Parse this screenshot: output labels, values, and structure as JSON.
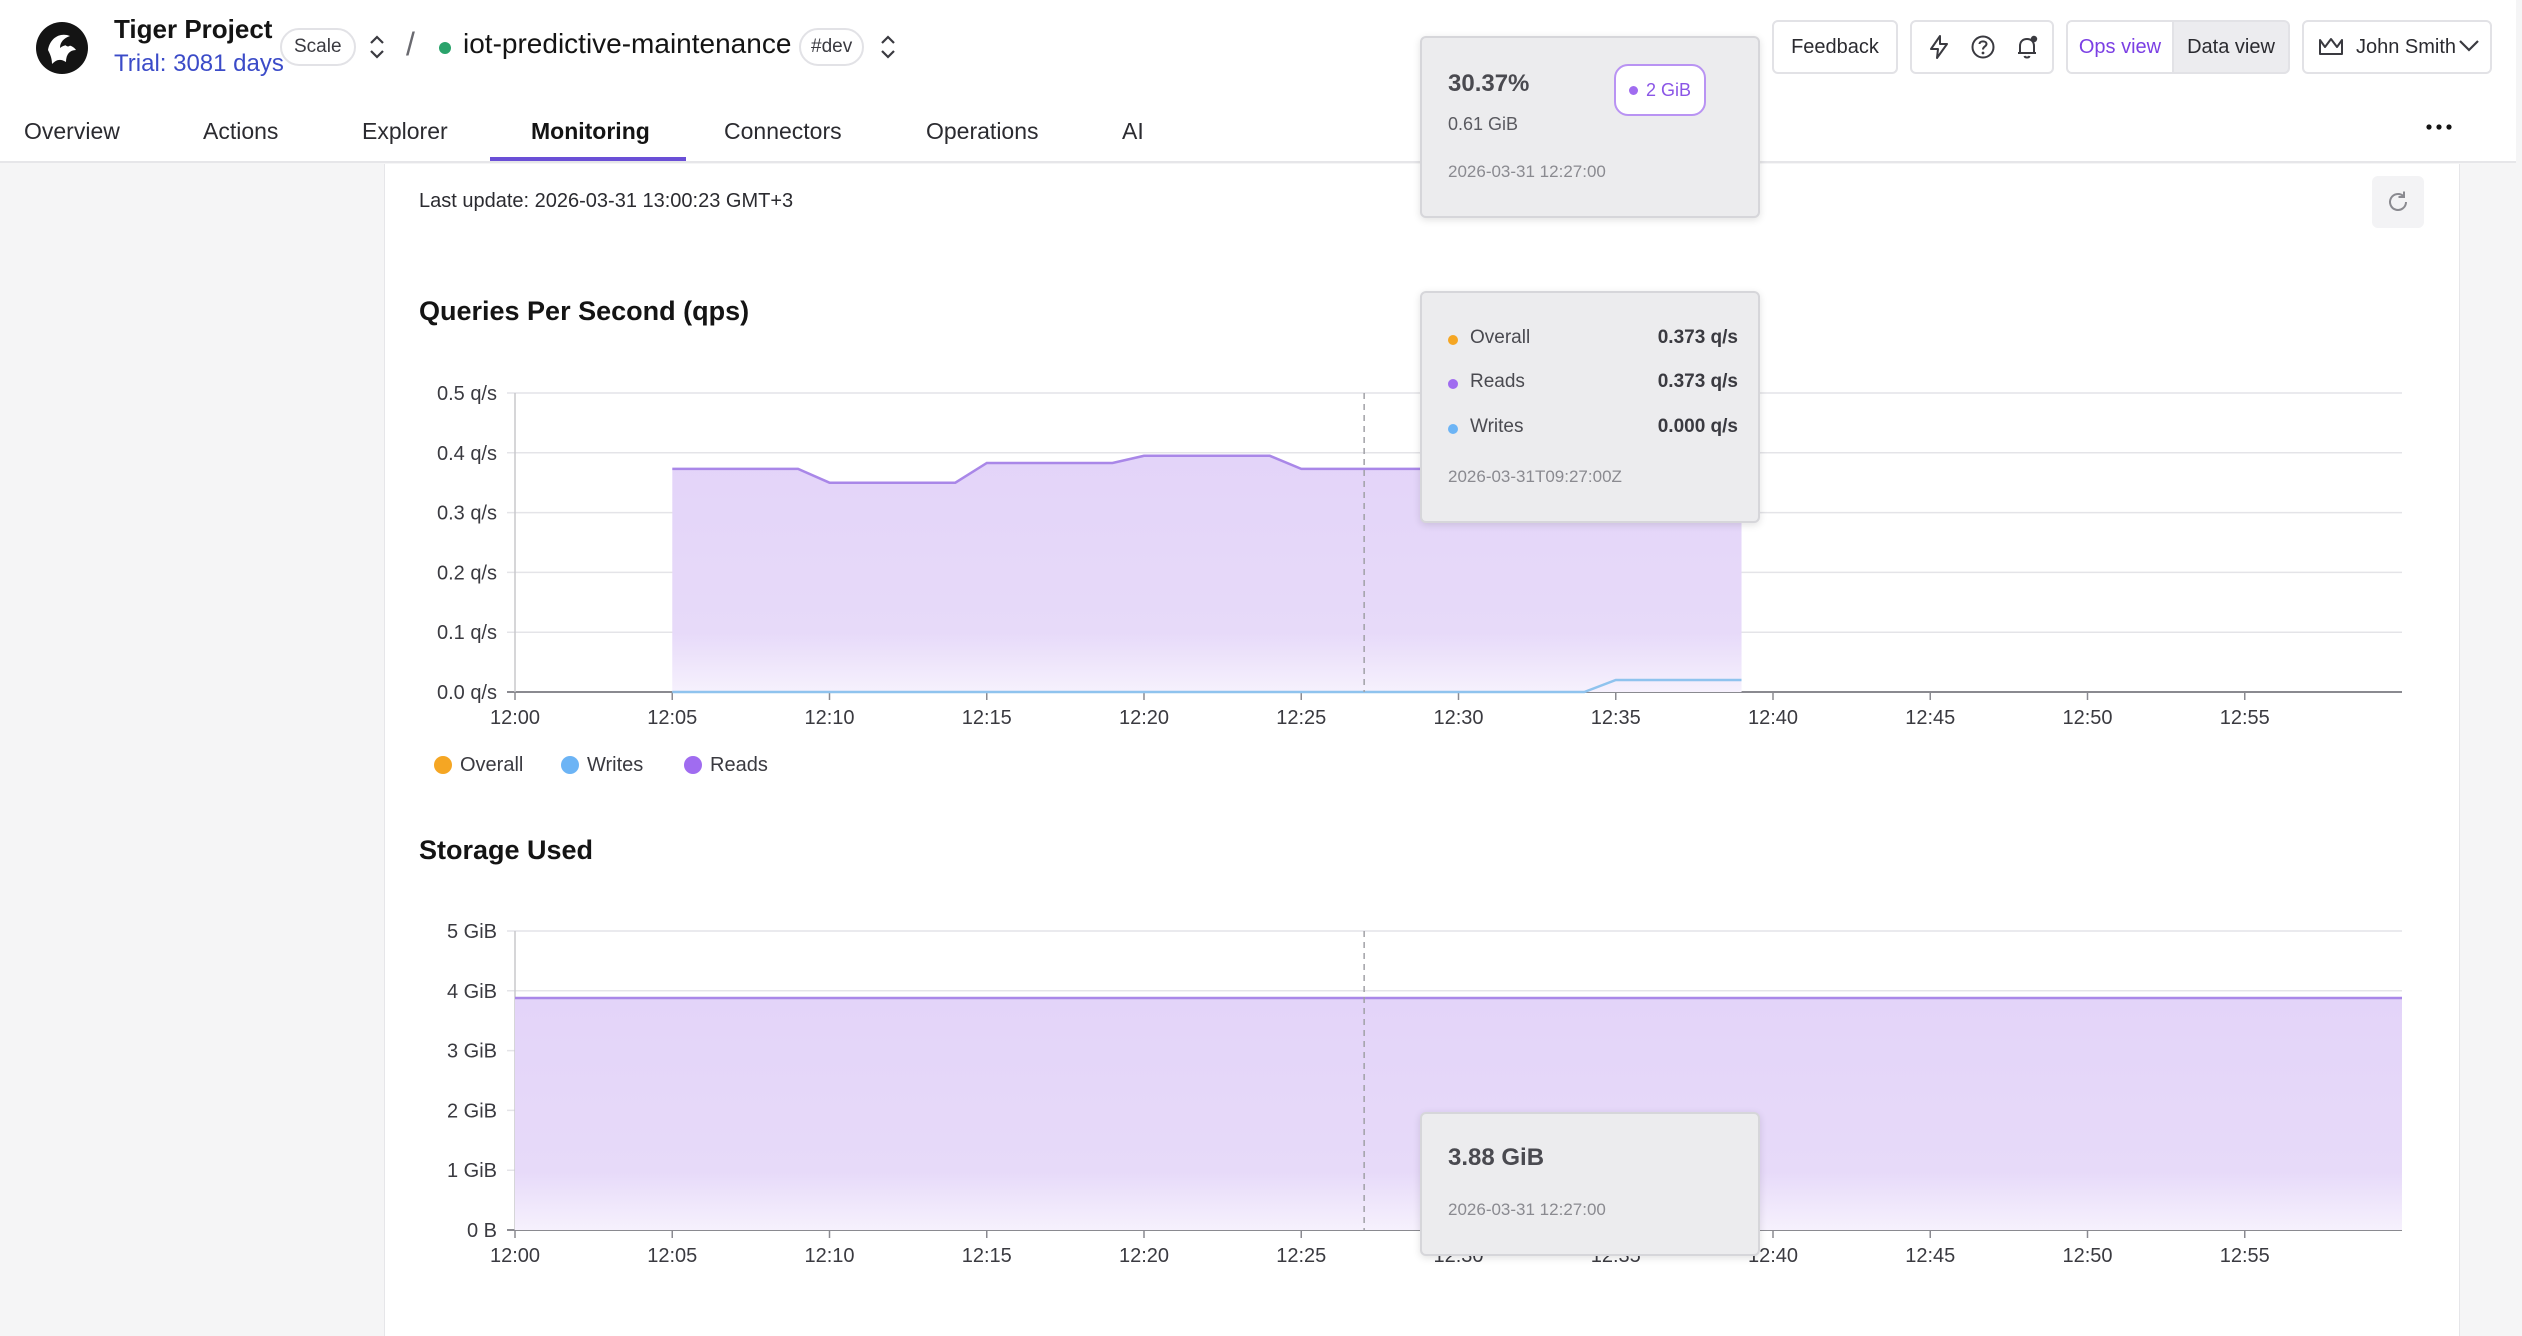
{
  "header": {
    "project_name": "Tiger Project",
    "trial": "Trial: 3081 days",
    "plan_chip": "Scale",
    "separator": "/",
    "service_name": "iot-predictive-maintenance",
    "env_chip": "#dev",
    "feedback_label": "Feedback",
    "ops_view_label": "Ops view",
    "data_view_label": "Data view",
    "user_name": "John Smith",
    "icons": [
      "logo-icon",
      "updown-icon",
      "lightning-icon",
      "help-icon",
      "bell-icon",
      "crown-icon",
      "chevron-down-icon",
      "more-icon",
      "refresh-icon"
    ]
  },
  "tabs": [
    "Overview",
    "Actions",
    "Explorer",
    "Monitoring",
    "Connectors",
    "Operations",
    "AI"
  ],
  "active_tab": "Monitoring",
  "last_update": "Last update: 2026-03-31 13:00:23 GMT+3",
  "qps_section": {
    "title": "Queries Per Second (qps)",
    "legend": [
      {
        "label": "Overall",
        "color": "#f5a623"
      },
      {
        "label": "Writes",
        "color": "#6cb4f5"
      },
      {
        "label": "Reads",
        "color": "#a06cf0"
      }
    ]
  },
  "storage_section": {
    "title": "Storage Used"
  },
  "tooltip_memory": {
    "percent": "30.37%",
    "amount": "0.61 GiB",
    "chip": "2 GiB",
    "time": "2026-03-31 12:27:00"
  },
  "tooltip_qps": {
    "rows": [
      {
        "label": "Overall",
        "value": "0.373 q/s",
        "color": "#f5a623"
      },
      {
        "label": "Reads",
        "value": "0.373 q/s",
        "color": "#a06cf0"
      },
      {
        "label": "Writes",
        "value": "0.000 q/s",
        "color": "#6cb4f5"
      }
    ],
    "time": "2026-03-31T09:27:00Z"
  },
  "tooltip_storage": {
    "value": "3.88 GiB",
    "time": "2026-03-31 12:27:00"
  },
  "colors": {
    "accent": "#7b3fe4",
    "reads_fill": "#e4d6fa",
    "reads_line": "#a987e8",
    "writes_line": "#8fc3ee",
    "trial_link": "#3b4bc8",
    "status_dot": "#2aa36b"
  },
  "chart_data": [
    {
      "type": "area",
      "title": "Queries Per Second (qps)",
      "x_ticks": [
        "12:00",
        "12:05",
        "12:10",
        "12:15",
        "12:20",
        "12:25",
        "12:30",
        "12:35",
        "12:40",
        "12:45",
        "12:50",
        "12:55"
      ],
      "y_ticks": [
        "0.0 q/s",
        "0.1 q/s",
        "0.2 q/s",
        "0.3 q/s",
        "0.4 q/s",
        "0.5 q/s"
      ],
      "ylim": [
        0,
        0.5
      ],
      "xlim": [
        "12:00",
        "13:00"
      ],
      "grid": true,
      "legend_position": "bottom-left",
      "series": [
        {
          "name": "Reads",
          "x": [
            "12:05",
            "12:09",
            "12:10",
            "12:14",
            "12:15",
            "12:19",
            "12:20",
            "12:24",
            "12:25",
            "12:39"
          ],
          "values": [
            0.373,
            0.373,
            0.35,
            0.35,
            0.383,
            0.383,
            0.395,
            0.395,
            0.373,
            0.373
          ]
        },
        {
          "name": "Writes",
          "x": [
            "12:05",
            "12:34",
            "12:35",
            "12:39"
          ],
          "values": [
            0.0,
            0.0,
            0.02,
            0.02
          ]
        },
        {
          "name": "Overall",
          "x": [
            "12:05",
            "12:39"
          ],
          "values": [
            0.373,
            0.373
          ]
        }
      ]
    },
    {
      "type": "area",
      "title": "Storage Used",
      "x_ticks": [
        "12:00",
        "12:05",
        "12:10",
        "12:15",
        "12:20",
        "12:25",
        "12:30",
        "12:35",
        "12:40",
        "12:45",
        "12:50",
        "12:55"
      ],
      "y_ticks": [
        "0 B",
        "1 GiB",
        "2 GiB",
        "3 GiB",
        "4 GiB",
        "5 GiB"
      ],
      "ylim": [
        0,
        5
      ],
      "xlim": [
        "12:00",
        "13:00"
      ],
      "grid": true,
      "series": [
        {
          "name": "Storage Used",
          "x": [
            "12:00",
            "13:00"
          ],
          "values": [
            3.88,
            3.88
          ]
        }
      ]
    }
  ]
}
